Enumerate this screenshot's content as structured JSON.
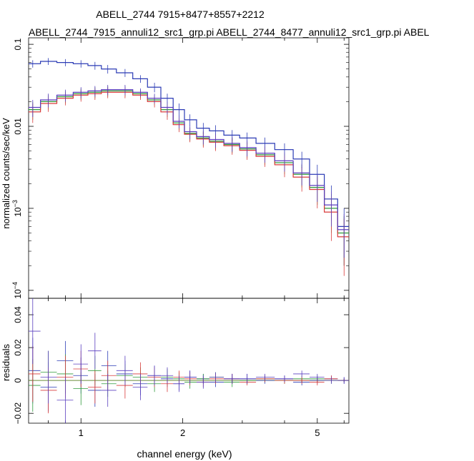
{
  "chart_data": [
    {
      "type": "scatter",
      "panel": "spectrum",
      "title": "ABELL_2744 7915+8477+8557+2212",
      "subtitle": "ABELL_2744_7915_annuli12_src1_grp.pi ABELL_2744_8477_annuli12_src1_grp.pi ABEL",
      "xlabel": "channel energy (keV)",
      "ylabel": "normalized counts/sec/keV",
      "xscale": "log",
      "yscale": "log",
      "xlim": [
        0.7,
        6.2
      ],
      "ylim": [
        8e-05,
        0.12
      ],
      "x_ticks": [
        {
          "value": 1,
          "label": "1"
        },
        {
          "value": 2,
          "label": "2"
        },
        {
          "value": 5,
          "label": "5"
        }
      ],
      "y_ticks": [
        {
          "value": 0.1,
          "label": "0.1"
        },
        {
          "value": 0.01,
          "label": "0.01"
        },
        {
          "value": 0.001,
          "label": "10",
          "sup": "−3"
        },
        {
          "value": 0.0001,
          "label": "10",
          "sup": "−4"
        }
      ],
      "series": [
        {
          "color": "#2b3bb5",
          "x": [
            0.72,
            0.8,
            0.9,
            1.0,
            1.1,
            1.2,
            1.35,
            1.5,
            1.65,
            1.8,
            1.95,
            2.1,
            2.3,
            2.5,
            2.8,
            3.1,
            3.5,
            4.0,
            4.5,
            5.0,
            5.5,
            6.0
          ],
          "y": [
            0.058,
            0.062,
            0.06,
            0.058,
            0.055,
            0.05,
            0.045,
            0.038,
            0.03,
            0.022,
            0.016,
            0.012,
            0.0095,
            0.0088,
            0.0078,
            0.0072,
            0.0062,
            0.0052,
            0.004,
            0.0026,
            0.0013,
            0.0006
          ],
          "err": [
            0.006,
            0.006,
            0.006,
            0.006,
            0.006,
            0.006,
            0.005,
            0.004,
            0.004,
            0.003,
            0.003,
            0.002,
            0.0015,
            0.0015,
            0.0012,
            0.0012,
            0.0011,
            0.001,
            0.0009,
            0.0008,
            0.0006,
            0.0004
          ]
        },
        {
          "color": "#2e9a3a",
          "x": [
            0.72,
            0.8,
            0.9,
            1.0,
            1.1,
            1.2,
            1.35,
            1.5,
            1.65,
            1.8,
            1.95,
            2.1,
            2.3,
            2.5,
            2.8,
            3.1,
            3.5,
            4.0,
            4.5,
            5.0,
            5.5,
            6.0
          ],
          "y": [
            0.016,
            0.02,
            0.023,
            0.025,
            0.026,
            0.027,
            0.027,
            0.025,
            0.021,
            0.016,
            0.011,
            0.0082,
            0.0072,
            0.0066,
            0.006,
            0.0053,
            0.0045,
            0.0036,
            0.0026,
            0.0018,
            0.001,
            0.0005
          ],
          "err": [
            0.004,
            0.004,
            0.004,
            0.004,
            0.004,
            0.004,
            0.004,
            0.003,
            0.003,
            0.003,
            0.002,
            0.0016,
            0.0015,
            0.0014,
            0.0013,
            0.0012,
            0.0011,
            0.001,
            0.0008,
            0.0007,
            0.0005,
            0.0003
          ]
        },
        {
          "color": "#d93a3a",
          "x": [
            0.72,
            0.8,
            0.9,
            1.0,
            1.1,
            1.2,
            1.35,
            1.5,
            1.65,
            1.8,
            1.95,
            2.1,
            2.3,
            2.5,
            2.8,
            3.1,
            3.5,
            4.0,
            4.5,
            5.0,
            5.5,
            6.0
          ],
          "y": [
            0.015,
            0.019,
            0.022,
            0.024,
            0.025,
            0.026,
            0.026,
            0.024,
            0.02,
            0.015,
            0.0105,
            0.008,
            0.007,
            0.0064,
            0.0058,
            0.0051,
            0.0043,
            0.0034,
            0.0024,
            0.0017,
            0.0009,
            0.00045
          ],
          "err": [
            0.004,
            0.004,
            0.004,
            0.004,
            0.004,
            0.004,
            0.004,
            0.003,
            0.003,
            0.003,
            0.002,
            0.0016,
            0.0015,
            0.0014,
            0.0013,
            0.0012,
            0.0011,
            0.001,
            0.0008,
            0.0007,
            0.0005,
            0.0003
          ]
        },
        {
          "color": "#5a3fbf",
          "x": [
            0.72,
            0.8,
            0.9,
            1.0,
            1.1,
            1.2,
            1.35,
            1.5,
            1.65,
            1.8,
            1.95,
            2.1,
            2.3,
            2.5,
            2.8,
            3.1,
            3.5,
            4.0,
            4.5,
            5.0,
            5.5,
            6.0
          ],
          "y": [
            0.017,
            0.021,
            0.024,
            0.026,
            0.027,
            0.028,
            0.028,
            0.026,
            0.022,
            0.017,
            0.0115,
            0.0086,
            0.0075,
            0.0069,
            0.0062,
            0.0055,
            0.0047,
            0.0038,
            0.0027,
            0.0019,
            0.0011,
            0.00055
          ],
          "err": [
            0.004,
            0.004,
            0.004,
            0.004,
            0.004,
            0.004,
            0.004,
            0.003,
            0.003,
            0.003,
            0.002,
            0.0016,
            0.0015,
            0.0014,
            0.0013,
            0.0012,
            0.0011,
            0.001,
            0.0008,
            0.0007,
            0.0005,
            0.0003
          ]
        }
      ]
    },
    {
      "type": "scatter",
      "panel": "residuals",
      "xlabel": "channel energy (keV)",
      "ylabel": "residuals",
      "xscale": "log",
      "xlim": [
        0.7,
        6.2
      ],
      "ylim": [
        -0.026,
        0.05
      ],
      "x_ticks": [
        {
          "value": 1,
          "label": "1"
        },
        {
          "value": 2,
          "label": "2"
        },
        {
          "value": 5,
          "label": "5"
        }
      ],
      "y_ticks": [
        {
          "value": 0.04,
          "label": "0.04"
        },
        {
          "value": 0.02,
          "label": "0.02"
        },
        {
          "value": 0,
          "label": "0"
        },
        {
          "value": -0.02,
          "label": "−0.02"
        }
      ],
      "series": [
        {
          "color": "#2b3bb5",
          "x": [
            0.72,
            0.8,
            0.9,
            1.0,
            1.1,
            1.2,
            1.35,
            1.5,
            1.65,
            1.8,
            1.95,
            2.1,
            2.3,
            2.5,
            2.8,
            3.1,
            3.5,
            4.0,
            4.5,
            5.0,
            5.5,
            6.0
          ],
          "y": [
            0.006,
            -0.004,
            0.012,
            0.003,
            -0.006,
            0.009,
            0.004,
            -0.002,
            0.003,
            0.001,
            -0.002,
            0.002,
            0.001,
            -0.001,
            0.001,
            0.001,
            0.0,
            0.001,
            -0.001,
            0.0,
            0.001,
            0.0
          ],
          "err": [
            0.02,
            0.015,
            0.012,
            0.011,
            0.01,
            0.009,
            0.008,
            0.007,
            0.006,
            0.005,
            0.004,
            0.004,
            0.003,
            0.003,
            0.003,
            0.003,
            0.002,
            0.002,
            0.002,
            0.002,
            0.002,
            0.002
          ]
        },
        {
          "color": "#2e9a3a",
          "x": [
            0.72,
            0.8,
            0.9,
            1.0,
            1.1,
            1.2,
            1.35,
            1.5,
            1.65,
            1.8,
            1.95,
            2.1,
            2.3,
            2.5,
            2.8,
            3.1,
            3.5,
            4.0,
            4.5,
            5.0,
            5.5,
            6.0
          ],
          "y": [
            -0.003,
            0.005,
            0.004,
            -0.005,
            0.006,
            -0.002,
            0.003,
            0.002,
            -0.002,
            0.002,
            0.001,
            -0.001,
            0.001,
            0.002,
            -0.001,
            0.0,
            0.001,
            0.0,
            0.001,
            0.001,
            0.0,
            0.0
          ],
          "err": [
            0.016,
            0.013,
            0.012,
            0.01,
            0.009,
            0.008,
            0.007,
            0.006,
            0.005,
            0.005,
            0.004,
            0.004,
            0.003,
            0.003,
            0.003,
            0.002,
            0.002,
            0.002,
            0.002,
            0.002,
            0.002,
            0.001
          ]
        },
        {
          "color": "#d93a3a",
          "x": [
            0.72,
            0.8,
            0.9,
            1.0,
            1.1,
            1.2,
            1.35,
            1.5,
            1.65,
            1.8,
            1.95,
            2.1,
            2.3,
            2.5,
            2.8,
            3.1,
            3.5,
            4.0,
            4.5,
            5.0,
            5.5,
            6.0
          ],
          "y": [
            0.004,
            -0.006,
            0.002,
            0.007,
            -0.004,
            0.003,
            -0.003,
            0.004,
            0.002,
            -0.002,
            0.002,
            0.001,
            -0.001,
            0.001,
            0.001,
            -0.001,
            0.001,
            0.0,
            0.0,
            -0.001,
            0.001,
            0.0
          ],
          "err": [
            0.017,
            0.014,
            0.013,
            0.011,
            0.01,
            0.009,
            0.008,
            0.007,
            0.006,
            0.005,
            0.004,
            0.004,
            0.003,
            0.003,
            0.003,
            0.002,
            0.002,
            0.002,
            0.002,
            0.002,
            0.002,
            0.001
          ]
        },
        {
          "color": "#5a3fbf",
          "x": [
            0.72,
            0.8,
            0.9,
            1.0,
            1.1,
            1.2,
            1.35,
            1.5,
            1.65,
            1.8,
            1.95,
            2.1,
            2.3,
            2.5,
            2.8,
            3.1,
            3.5,
            4.0,
            4.5,
            5.0,
            5.5,
            6.0
          ],
          "y": [
            0.03,
            0.002,
            -0.012,
            0.01,
            0.018,
            -0.006,
            0.006,
            -0.004,
            0.003,
            0.003,
            -0.002,
            0.002,
            -0.001,
            0.002,
            0.001,
            0.001,
            0.002,
            0.001,
            0.004,
            0.002,
            0.0,
            0.0
          ],
          "err": [
            0.02,
            0.016,
            0.014,
            0.012,
            0.011,
            0.01,
            0.009,
            0.008,
            0.006,
            0.005,
            0.005,
            0.004,
            0.004,
            0.003,
            0.003,
            0.003,
            0.002,
            0.002,
            0.002,
            0.002,
            0.002,
            0.002
          ]
        }
      ]
    }
  ]
}
